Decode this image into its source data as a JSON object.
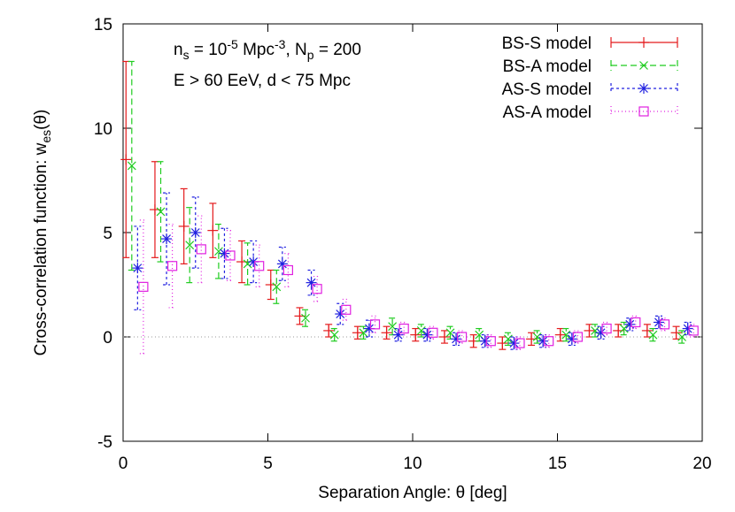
{
  "chart_data": {
    "type": "errorbar",
    "annotations": [
      [
        {
          "text": "n"
        },
        {
          "text": "s",
          "shift": "sub"
        },
        {
          "text": " = 10"
        },
        {
          "text": "-5",
          "shift": "sup"
        },
        {
          "text": " Mpc"
        },
        {
          "text": "-3",
          "shift": "sup"
        },
        {
          "text": ", N"
        },
        {
          "text": "p",
          "shift": "sub"
        },
        {
          "text": " = 200"
        }
      ],
      [
        {
          "text": "E > 60 EeV, d < 75 Mpc"
        }
      ]
    ],
    "xlabel": "Separation Angle: θ [deg]",
    "ylabel": [
      {
        "text": "Cross-correlation function: w"
      },
      {
        "text": "es",
        "shift": "sub"
      },
      {
        "text": "(θ)"
      }
    ],
    "xlim": [
      0,
      20
    ],
    "xticks": [
      0,
      5,
      10,
      15,
      20
    ],
    "ylim": [
      -5,
      15
    ],
    "yticks": [
      -5,
      0,
      5,
      10,
      15
    ],
    "hline": 0,
    "legend": "top-right",
    "series": [
      {
        "name": "BS-S model",
        "color": "#e41a1c",
        "marker": "plus",
        "dash": "none",
        "x": [
          0.1,
          1.1,
          2.1,
          3.1,
          4.1,
          5.1,
          6.1,
          7.1,
          8.1,
          9.1,
          10.1,
          11.1,
          12.1,
          13.1,
          14.1,
          15.1,
          16.1,
          17.1,
          18.1,
          19.1
        ],
        "values": [
          8.5,
          6.1,
          5.3,
          5.1,
          3.6,
          2.5,
          1.0,
          0.3,
          0.2,
          0.2,
          0.1,
          0.0,
          -0.2,
          -0.3,
          -0.1,
          0.1,
          0.3,
          0.3,
          0.3,
          0.2
        ],
        "errors": [
          4.7,
          2.3,
          1.8,
          1.3,
          1.0,
          0.7,
          0.4,
          0.3,
          0.3,
          0.3,
          0.3,
          0.3,
          0.3,
          0.3,
          0.3,
          0.3,
          0.3,
          0.3,
          0.3,
          0.3
        ]
      },
      {
        "name": "BS-A model",
        "color": "#1fcc1f",
        "marker": "cross",
        "dash": "7,4",
        "x": [
          0.3,
          1.3,
          2.3,
          3.3,
          4.3,
          5.3,
          6.3,
          7.3,
          8.3,
          9.3,
          10.3,
          11.3,
          12.3,
          13.3,
          14.3,
          15.3,
          16.3,
          17.3,
          18.3,
          19.3
        ],
        "values": [
          8.2,
          6.0,
          4.4,
          4.1,
          3.5,
          2.4,
          0.9,
          0.1,
          0.2,
          0.5,
          0.3,
          0.2,
          0.1,
          -0.1,
          0.0,
          0.1,
          0.3,
          0.4,
          0.1,
          0.0
        ],
        "errors": [
          5.0,
          2.4,
          1.8,
          1.3,
          1.0,
          0.8,
          0.4,
          0.3,
          0.3,
          0.4,
          0.3,
          0.3,
          0.3,
          0.3,
          0.3,
          0.3,
          0.3,
          0.3,
          0.3,
          0.3
        ]
      },
      {
        "name": "AS-S model",
        "color": "#2020e0",
        "marker": "star",
        "dash": "3,3",
        "x": [
          0.5,
          1.5,
          2.5,
          3.5,
          4.5,
          5.5,
          6.5,
          7.5,
          8.5,
          9.5,
          10.5,
          11.5,
          12.5,
          13.5,
          14.5,
          15.5,
          16.5,
          17.5,
          18.5,
          19.5
        ],
        "values": [
          3.3,
          4.7,
          5.0,
          4.0,
          3.6,
          3.5,
          2.6,
          1.1,
          0.4,
          0.1,
          0.1,
          -0.1,
          -0.2,
          -0.3,
          -0.2,
          -0.1,
          0.2,
          0.6,
          0.7,
          0.4
        ],
        "errors": [
          2.0,
          2.2,
          1.7,
          1.2,
          1.0,
          0.8,
          0.6,
          0.5,
          0.4,
          0.3,
          0.3,
          0.3,
          0.3,
          0.3,
          0.3,
          0.3,
          0.3,
          0.3,
          0.3,
          0.3
        ]
      },
      {
        "name": "AS-A model",
        "color": "#e020e0",
        "marker": "square",
        "dash": "1,3",
        "x": [
          0.7,
          1.7,
          2.7,
          3.7,
          4.7,
          5.7,
          6.7,
          7.7,
          8.7,
          9.7,
          10.7,
          11.7,
          12.7,
          13.7,
          14.7,
          15.7,
          16.7,
          17.7,
          18.7,
          19.7
        ],
        "values": [
          2.4,
          3.4,
          4.2,
          3.9,
          3.4,
          3.2,
          2.3,
          1.3,
          0.6,
          0.4,
          0.2,
          0.0,
          -0.2,
          -0.3,
          -0.2,
          0.0,
          0.4,
          0.7,
          0.6,
          0.3
        ],
        "errors": [
          3.2,
          2.0,
          1.6,
          1.2,
          1.0,
          0.8,
          0.6,
          0.5,
          0.4,
          0.3,
          0.3,
          0.3,
          0.3,
          0.3,
          0.3,
          0.3,
          0.3,
          0.3,
          0.3,
          0.3
        ]
      }
    ]
  }
}
